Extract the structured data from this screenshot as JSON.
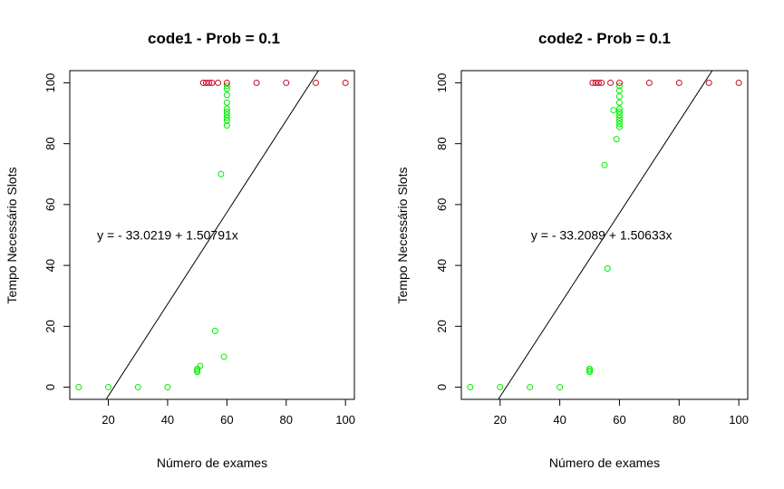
{
  "chart_data": [
    {
      "type": "scatter",
      "title": "code1 - Prob = 0.1",
      "xlabel": "Número de exames",
      "ylabel": "Tempo Necessário Slots",
      "xlim": [
        7,
        103
      ],
      "ylim": [
        -4,
        104
      ],
      "xticks": [
        20,
        40,
        60,
        80,
        100
      ],
      "yticks": [
        0,
        20,
        40,
        60,
        80,
        100
      ],
      "grid": false,
      "annotation": {
        "text": "y = - 33.0219 + 1.50791x",
        "x": 40,
        "y": 50
      },
      "regression": {
        "intercept": -33.0219,
        "slope": 1.50791,
        "color": "#000000"
      },
      "series": [
        {
          "color": "#00ee00",
          "points": [
            [
              10,
              0
            ],
            [
              20,
              0
            ],
            [
              30,
              0
            ],
            [
              40,
              0
            ],
            [
              50,
              5
            ],
            [
              50,
              5.5
            ],
            [
              50,
              6
            ],
            [
              51,
              7
            ],
            [
              56,
              18.5
            ],
            [
              58,
              70
            ],
            [
              59,
              10
            ],
            [
              60,
              86
            ],
            [
              60,
              87.5
            ],
            [
              60,
              88.5
            ],
            [
              60,
              89.5
            ],
            [
              60,
              90.5
            ],
            [
              60,
              91.5
            ],
            [
              60,
              93.5
            ],
            [
              60,
              96
            ],
            [
              60,
              98
            ],
            [
              60,
              99
            ]
          ]
        },
        {
          "color": "#cc0022",
          "points": [
            [
              52,
              100
            ],
            [
              53,
              100
            ],
            [
              54,
              100
            ],
            [
              55,
              100
            ],
            [
              57,
              100
            ],
            [
              60,
              100
            ],
            [
              70,
              100
            ],
            [
              80,
              100
            ],
            [
              90,
              100
            ],
            [
              100,
              100
            ]
          ]
        }
      ]
    },
    {
      "type": "scatter",
      "title": "code2 - Prob = 0.1",
      "xlabel": "Número de exames",
      "ylabel": "Tempo Necessário Slots",
      "xlim": [
        7,
        103
      ],
      "ylim": [
        -4,
        104
      ],
      "xticks": [
        20,
        40,
        60,
        80,
        100
      ],
      "yticks": [
        0,
        20,
        40,
        60,
        80,
        100
      ],
      "grid": false,
      "annotation": {
        "text": "y = - 33.2089 + 1.50633x",
        "x": 54,
        "y": 50
      },
      "regression": {
        "intercept": -33.2089,
        "slope": 1.50633,
        "color": "#000000"
      },
      "series": [
        {
          "color": "#00ee00",
          "points": [
            [
              10,
              0
            ],
            [
              20,
              0
            ],
            [
              30,
              0
            ],
            [
              40,
              0
            ],
            [
              50,
              5
            ],
            [
              50,
              5.5
            ],
            [
              50,
              6
            ],
            [
              55,
              73
            ],
            [
              56,
              39
            ],
            [
              58,
              91
            ],
            [
              59,
              81.5
            ],
            [
              60,
              85.5
            ],
            [
              60,
              86.5
            ],
            [
              60,
              87.5
            ],
            [
              60,
              88.5
            ],
            [
              60,
              89.5
            ],
            [
              60,
              90.5
            ],
            [
              60,
              91.5
            ],
            [
              60,
              93.5
            ],
            [
              60,
              95.5
            ],
            [
              60,
              97.5
            ],
            [
              60,
              99
            ]
          ]
        },
        {
          "color": "#cc0022",
          "points": [
            [
              51,
              100
            ],
            [
              52,
              100
            ],
            [
              53,
              100
            ],
            [
              54,
              100
            ],
            [
              57,
              100
            ],
            [
              60,
              100
            ],
            [
              70,
              100
            ],
            [
              80,
              100
            ],
            [
              90,
              100
            ],
            [
              100,
              100
            ]
          ]
        }
      ]
    }
  ]
}
